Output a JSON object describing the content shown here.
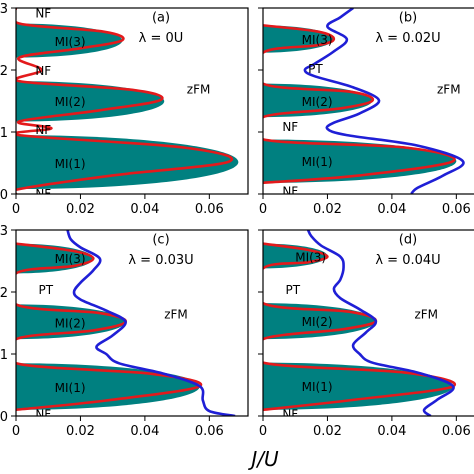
{
  "colors": {
    "mi_fill": "#008080",
    "curve_red": "#e31a1c",
    "curve_blue": "#1f1fd6",
    "axis": "#000000"
  },
  "figure": {
    "xlabel": "J/U"
  },
  "chart_data": [
    {
      "type": "area",
      "panel_tag": "(a)",
      "lambda_label": "λ = 0U",
      "xlim": [
        0,
        0.072
      ],
      "ylim": [
        0,
        3
      ],
      "xticks": [
        0,
        0.02,
        0.04,
        0.06
      ],
      "xtick_labels": [
        "0",
        "0.02",
        "0.04",
        "0.06"
      ],
      "yticks": [
        0,
        1,
        2,
        3
      ],
      "ytick_labels": [
        "0",
        "1",
        "2",
        "3"
      ],
      "lobes": [
        {
          "label": "MI(1)",
          "y_bottom": 0.08,
          "y_top": 0.95,
          "x_max": 0.069,
          "x_left": 0.0
        },
        {
          "label": "MI(2)",
          "y_bottom": 1.17,
          "y_top": 1.82,
          "x_max": 0.046,
          "x_left": 0.0
        },
        {
          "label": "MI(3)",
          "y_bottom": 2.2,
          "y_top": 2.75,
          "x_max": 0.033,
          "x_left": 0.0
        }
      ],
      "red_curve": {
        "y": [
          0.0,
          0.08,
          0.3,
          0.52,
          0.75,
          0.95,
          1.06,
          1.17,
          1.35,
          1.52,
          1.68,
          1.82,
          2.0,
          2.2,
          2.35,
          2.48,
          2.62,
          2.75,
          3.0
        ],
        "x": [
          0.0,
          0.001,
          0.03,
          0.066,
          0.052,
          0.001,
          0.011,
          0.001,
          0.026,
          0.045,
          0.036,
          0.001,
          0.008,
          0.001,
          0.02,
          0.033,
          0.027,
          0.001,
          0.0
        ]
      },
      "blue_curve": null,
      "region_labels": [
        {
          "text": "NF",
          "x": 0.006,
          "y": 0.02
        },
        {
          "text": "MI(1)",
          "x": 0.012,
          "y": 0.5
        },
        {
          "text": "NF",
          "x": 0.006,
          "y": 1.05
        },
        {
          "text": "MI(2)",
          "x": 0.012,
          "y": 1.5
        },
        {
          "text": "NF",
          "x": 0.006,
          "y": 2.0
        },
        {
          "text": "MI(3)",
          "x": 0.012,
          "y": 2.47
        },
        {
          "text": "NF",
          "x": 0.006,
          "y": 2.93
        },
        {
          "text": "zFM",
          "x": 0.053,
          "y": 1.7
        }
      ]
    },
    {
      "type": "area",
      "panel_tag": "(b)",
      "lambda_label": "λ = 0.02U",
      "xlim": [
        0,
        0.072
      ],
      "ylim": [
        0,
        3
      ],
      "xticks": [
        0,
        0.02,
        0.04,
        0.06
      ],
      "xtick_labels": [
        "0",
        "0.02",
        "0.04",
        "0.06"
      ],
      "yticks": [
        0,
        1,
        2,
        3
      ],
      "ytick_labels": [
        "0",
        "1",
        "2",
        "3"
      ],
      "lobes": [
        {
          "label": "MI(1)",
          "y_bottom": 0.18,
          "y_top": 0.88,
          "x_max": 0.06,
          "x_left": 0.0
        },
        {
          "label": "MI(2)",
          "y_bottom": 1.24,
          "y_top": 1.78,
          "x_max": 0.034,
          "x_left": 0.0
        },
        {
          "label": "MI(3)",
          "y_bottom": 2.28,
          "y_top": 2.72,
          "x_max": 0.022,
          "x_left": 0.0
        }
      ],
      "red_curve": {
        "y": [
          0.18,
          0.3,
          0.53,
          0.75,
          0.88,
          1.24,
          1.38,
          1.51,
          1.65,
          1.78,
          2.28,
          2.4,
          2.5,
          2.62,
          2.72
        ],
        "x": [
          0.0,
          0.03,
          0.059,
          0.044,
          0.0,
          0.0,
          0.024,
          0.034,
          0.027,
          0.0,
          0.0,
          0.017,
          0.022,
          0.017,
          0.0
        ]
      },
      "blue_curve": {
        "y": [
          0.0,
          0.1,
          0.3,
          0.53,
          0.78,
          0.95,
          1.05,
          1.15,
          1.3,
          1.51,
          1.72,
          1.9,
          2.0,
          2.1,
          2.3,
          2.5,
          2.7,
          2.85,
          3.0
        ],
        "x": [
          0.046,
          0.048,
          0.056,
          0.062,
          0.048,
          0.026,
          0.02,
          0.022,
          0.03,
          0.036,
          0.028,
          0.016,
          0.013,
          0.016,
          0.022,
          0.026,
          0.02,
          0.024,
          0.028
        ]
      },
      "region_labels": [
        {
          "text": "NF",
          "x": 0.006,
          "y": 0.06
        },
        {
          "text": "MI(1)",
          "x": 0.012,
          "y": 0.53
        },
        {
          "text": "NF",
          "x": 0.006,
          "y": 1.1
        },
        {
          "text": "MI(2)",
          "x": 0.012,
          "y": 1.5
        },
        {
          "text": "PT",
          "x": 0.014,
          "y": 2.03
        },
        {
          "text": "MI(3)",
          "x": 0.012,
          "y": 2.5
        },
        {
          "text": "zFM",
          "x": 0.054,
          "y": 1.7
        }
      ]
    },
    {
      "type": "area",
      "panel_tag": "(c)",
      "lambda_label": "λ = 0.03U",
      "xlim": [
        0,
        0.072
      ],
      "ylim": [
        0,
        3
      ],
      "xticks": [
        0,
        0.02,
        0.04,
        0.06
      ],
      "xtick_labels": [
        "0",
        "0.02",
        "0.04",
        "0.06"
      ],
      "yticks": [
        0,
        1,
        2,
        3
      ],
      "ytick_labels": [
        "0",
        "1",
        "2",
        "3"
      ],
      "lobes": [
        {
          "label": "MI(1)",
          "y_bottom": 0.1,
          "y_top": 0.85,
          "x_max": 0.057,
          "x_left": 0.0
        },
        {
          "label": "MI(2)",
          "y_bottom": 1.24,
          "y_top": 1.8,
          "x_max": 0.034,
          "x_left": 0.0
        },
        {
          "label": "MI(3)",
          "y_bottom": 2.3,
          "y_top": 2.78,
          "x_max": 0.024,
          "x_left": 0.0
        }
      ],
      "red_curve": {
        "y": [
          0.1,
          0.25,
          0.48,
          0.68,
          0.85,
          1.24,
          1.38,
          1.52,
          1.66,
          1.8,
          2.3,
          2.42,
          2.54,
          2.66,
          2.78
        ],
        "x": [
          0.0,
          0.028,
          0.057,
          0.042,
          0.0,
          0.0,
          0.024,
          0.034,
          0.026,
          0.0,
          0.0,
          0.018,
          0.024,
          0.018,
          0.0
        ]
      },
      "blue_curve": {
        "y": [
          0.0,
          0.08,
          0.25,
          0.48,
          0.68,
          0.85,
          1.0,
          1.12,
          1.3,
          1.52,
          1.7,
          1.88,
          2.0,
          2.15,
          2.35,
          2.54,
          2.72,
          2.85,
          3.0
        ],
        "x": [
          0.068,
          0.06,
          0.058,
          0.057,
          0.046,
          0.032,
          0.028,
          0.025,
          0.03,
          0.034,
          0.028,
          0.02,
          0.018,
          0.02,
          0.024,
          0.026,
          0.02,
          0.017,
          0.016
        ]
      },
      "region_labels": [
        {
          "text": "NF",
          "x": 0.006,
          "y": 0.04
        },
        {
          "text": "MI(1)",
          "x": 0.012,
          "y": 0.47
        },
        {
          "text": "MI(2)",
          "x": 0.012,
          "y": 1.51
        },
        {
          "text": "PT",
          "x": 0.007,
          "y": 2.05
        },
        {
          "text": "MI(3)",
          "x": 0.012,
          "y": 2.55
        },
        {
          "text": "zFM",
          "x": 0.046,
          "y": 1.65
        }
      ]
    },
    {
      "type": "area",
      "panel_tag": "(d)",
      "lambda_label": "λ = 0.04U",
      "xlim": [
        0,
        0.072
      ],
      "ylim": [
        0,
        3
      ],
      "xticks": [
        0,
        0.02,
        0.04,
        0.06
      ],
      "xtick_labels": [
        "0",
        "0.02",
        "0.04",
        "0.06"
      ],
      "yticks": [
        0,
        1,
        2,
        3
      ],
      "ytick_labels": [
        "0",
        "1",
        "2",
        "3"
      ],
      "lobes": [
        {
          "label": "MI(1)",
          "y_bottom": 0.1,
          "y_top": 0.86,
          "x_max": 0.059,
          "x_left": 0.0
        },
        {
          "label": "MI(2)",
          "y_bottom": 1.24,
          "y_top": 1.82,
          "x_max": 0.035,
          "x_left": 0.0
        },
        {
          "label": "MI(3)",
          "y_bottom": 2.38,
          "y_top": 2.78,
          "x_max": 0.02,
          "x_left": 0.0
        }
      ],
      "red_curve": {
        "y": [
          0.1,
          0.26,
          0.48,
          0.7,
          0.86,
          1.24,
          1.4,
          1.53,
          1.68,
          1.82,
          2.38,
          2.48,
          2.57,
          2.68,
          2.78
        ],
        "x": [
          0.0,
          0.028,
          0.059,
          0.044,
          0.0,
          0.0,
          0.025,
          0.035,
          0.027,
          0.0,
          0.0,
          0.014,
          0.02,
          0.014,
          0.0
        ]
      },
      "blue_curve": {
        "y": [
          0.0,
          0.1,
          0.26,
          0.48,
          0.7,
          0.86,
          1.0,
          1.15,
          1.35,
          1.53,
          1.72,
          1.9,
          2.05,
          2.2,
          2.4,
          2.57,
          2.75,
          2.9,
          3.0
        ],
        "x": [
          0.052,
          0.05,
          0.054,
          0.059,
          0.048,
          0.034,
          0.03,
          0.028,
          0.032,
          0.035,
          0.03,
          0.024,
          0.022,
          0.024,
          0.025,
          0.024,
          0.018,
          0.015,
          0.014
        ]
      },
      "region_labels": [
        {
          "text": "NF",
          "x": 0.006,
          "y": 0.04
        },
        {
          "text": "MI(1)",
          "x": 0.012,
          "y": 0.48
        },
        {
          "text": "MI(2)",
          "x": 0.012,
          "y": 1.53
        },
        {
          "text": "PT",
          "x": 0.007,
          "y": 2.05
        },
        {
          "text": "MI(3)",
          "x": 0.01,
          "y": 2.57
        },
        {
          "text": "zFM",
          "x": 0.047,
          "y": 1.65
        }
      ]
    }
  ]
}
